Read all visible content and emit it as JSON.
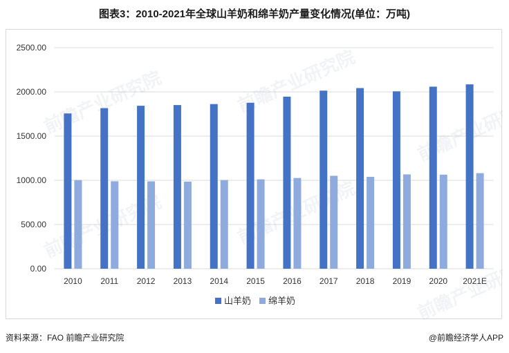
{
  "title": "图表3：2010-2021年全球山羊奶和绵羊奶产量变化情况(单位：万吨)",
  "source_text": "资料来源：FAO 前瞻产业研究院",
  "brand_text": "@前瞻经济学人APP",
  "watermark": "前瞻产业研究院",
  "colors": {
    "goat": "#4472C4",
    "sheep": "#8FAADC",
    "grid": "#d9d9d9"
  },
  "chart_data": {
    "type": "bar",
    "title": "图表3：2010-2021年全球山羊奶和绵羊奶产量变化情况(单位：万吨)",
    "xlabel": "",
    "ylabel": "",
    "categories": [
      "2010",
      "2011",
      "2012",
      "2013",
      "2014",
      "2015",
      "2016",
      "2017",
      "2018",
      "2019",
      "2020",
      "2021E"
    ],
    "series": [
      {
        "name": "山羊奶",
        "values": [
          1756,
          1816,
          1843,
          1851,
          1862,
          1877,
          1946,
          2014,
          2043,
          2006,
          2059,
          2085
        ]
      },
      {
        "name": "绵羊奶",
        "values": [
          1003,
          989,
          988,
          985,
          1003,
          1011,
          1026,
          1051,
          1039,
          1067,
          1064,
          1081
        ]
      }
    ],
    "ylim": [
      0,
      2500
    ],
    "yticks": [
      0,
      500,
      1000,
      1500,
      2000,
      2500
    ],
    "ytick_labels": [
      "0.00",
      "500.00",
      "1000.00",
      "1500.00",
      "2000.00",
      "2500.00"
    ],
    "grid": true,
    "legend_position": "bottom"
  }
}
